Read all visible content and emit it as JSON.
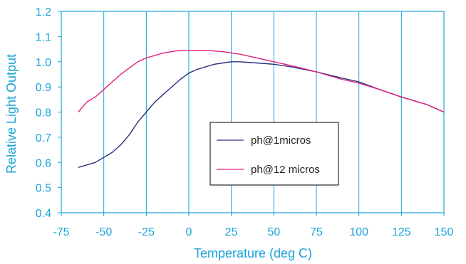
{
  "chart_data": {
    "type": "line",
    "xlabel": "Temperature (deg C)",
    "ylabel": "Relative Light Output",
    "xlim": [
      -75,
      150
    ],
    "ylim": [
      0.4,
      1.2
    ],
    "x_ticks": [
      "-75",
      "-50",
      "-25",
      "0",
      "25",
      "50",
      "75",
      "100",
      "125",
      "150"
    ],
    "y_ticks": [
      "0.4",
      "0.5",
      "0.6",
      "0.7",
      "0.8",
      "0.9",
      "1.0",
      "1.1",
      "1.2"
    ],
    "vertical_grid": true,
    "horizontal_grid": false,
    "legend_position": "center",
    "series": [
      {
        "name": "ph@1micros",
        "color": "#2b2f7f",
        "points": [
          [
            -65,
            0.58
          ],
          [
            -60,
            0.59
          ],
          [
            -55,
            0.6
          ],
          [
            -50,
            0.62
          ],
          [
            -45,
            0.64
          ],
          [
            -40,
            0.67
          ],
          [
            -35,
            0.71
          ],
          [
            -30,
            0.76
          ],
          [
            -25,
            0.8
          ],
          [
            -20,
            0.84
          ],
          [
            -15,
            0.87
          ],
          [
            -10,
            0.9
          ],
          [
            -5,
            0.93
          ],
          [
            0,
            0.955
          ],
          [
            5,
            0.97
          ],
          [
            10,
            0.98
          ],
          [
            15,
            0.99
          ],
          [
            20,
            0.995
          ],
          [
            25,
            1.0
          ],
          [
            30,
            1.0
          ],
          [
            40,
            0.995
          ],
          [
            50,
            0.99
          ],
          [
            60,
            0.98
          ],
          [
            75,
            0.96
          ],
          [
            90,
            0.935
          ],
          [
            100,
            0.92
          ],
          [
            112,
            0.89
          ],
          [
            125,
            0.86
          ],
          [
            140,
            0.83
          ],
          [
            150,
            0.8
          ]
        ]
      },
      {
        "name": "ph@12 micros",
        "color": "#e0207f",
        "points": [
          [
            -65,
            0.8
          ],
          [
            -60,
            0.84
          ],
          [
            -55,
            0.86
          ],
          [
            -50,
            0.89
          ],
          [
            -45,
            0.92
          ],
          [
            -40,
            0.95
          ],
          [
            -35,
            0.975
          ],
          [
            -30,
            1.0
          ],
          [
            -25,
            1.015
          ],
          [
            -20,
            1.025
          ],
          [
            -15,
            1.035
          ],
          [
            -10,
            1.04
          ],
          [
            -5,
            1.045
          ],
          [
            0,
            1.045
          ],
          [
            10,
            1.045
          ],
          [
            20,
            1.04
          ],
          [
            25,
            1.035
          ],
          [
            30,
            1.03
          ],
          [
            40,
            1.015
          ],
          [
            50,
            1.0
          ],
          [
            60,
            0.985
          ],
          [
            75,
            0.96
          ],
          [
            90,
            0.93
          ],
          [
            100,
            0.915
          ],
          [
            112,
            0.89
          ],
          [
            125,
            0.86
          ],
          [
            140,
            0.83
          ],
          [
            150,
            0.8
          ]
        ]
      }
    ]
  },
  "colors": {
    "axis_text": "#1aa3d9",
    "grid": "#1aa3d9",
    "frame": "#1aa3d9"
  }
}
